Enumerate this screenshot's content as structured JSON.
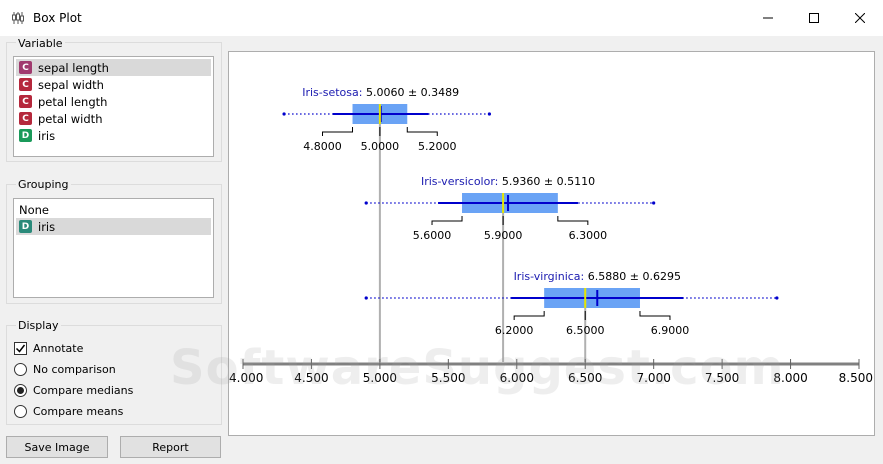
{
  "window": {
    "title": "Box Plot",
    "app_icon": "box-plot-icon"
  },
  "variable": {
    "label": "Variable",
    "items": [
      {
        "type": "C",
        "name": "sepal length",
        "selected": true
      },
      {
        "type": "C",
        "name": "sepal width",
        "selected": false
      },
      {
        "type": "C",
        "name": "petal length",
        "selected": false
      },
      {
        "type": "C",
        "name": "petal width",
        "selected": false
      },
      {
        "type": "D",
        "name": "iris",
        "selected": false
      }
    ]
  },
  "grouping": {
    "label": "Grouping",
    "items": [
      {
        "type": "",
        "name": "None",
        "selected": false
      },
      {
        "type": "D",
        "name": "iris",
        "selected": true
      }
    ]
  },
  "display": {
    "label": "Display",
    "annotate": {
      "label": "Annotate",
      "checked": true
    },
    "options": [
      {
        "label": "No comparison",
        "selected": false
      },
      {
        "label": "Compare medians",
        "selected": true
      },
      {
        "label": "Compare means",
        "selected": false
      }
    ]
  },
  "buttons": {
    "save": "Save Image",
    "report": "Report"
  },
  "watermark": "SoftwareSuggest.com",
  "colors": {
    "box": "#6aa3f5",
    "mean": "#0000cc",
    "median": "#e6e600",
    "label": "#1a1ab0"
  },
  "chart_data": {
    "type": "boxplot",
    "axis": {
      "min": 4.0,
      "max": 8.5,
      "ticks": [
        "4.000",
        "4.500",
        "5.000",
        "5.500",
        "6.000",
        "6.500",
        "7.000",
        "7.500",
        "8.000",
        "8.500"
      ]
    },
    "compare": "medians",
    "groups": [
      {
        "name": "Iris-setosa",
        "stat": "5.0060 ± 0.3489",
        "mean": 5.006,
        "sd": 0.3489,
        "min": 4.3,
        "q1": 4.8,
        "median": 5.0,
        "q3": 5.2,
        "max": 5.8,
        "labels": [
          "4.8000",
          "5.0000",
          "5.2000"
        ]
      },
      {
        "name": "Iris-versicolor",
        "stat": "5.9360 ± 0.5110",
        "mean": 5.936,
        "sd": 0.511,
        "min": 4.9,
        "q1": 5.6,
        "median": 5.9,
        "q3": 6.3,
        "max": 7.0,
        "labels": [
          "5.6000",
          "5.9000",
          "6.3000"
        ]
      },
      {
        "name": "Iris-virginica",
        "stat": "6.5880 ± 0.6295",
        "mean": 6.588,
        "sd": 0.6295,
        "min": 4.9,
        "q1": 6.2,
        "median": 6.5,
        "q3": 6.9,
        "max": 7.9,
        "labels": [
          "6.2000",
          "6.5000",
          "6.9000"
        ]
      }
    ]
  }
}
